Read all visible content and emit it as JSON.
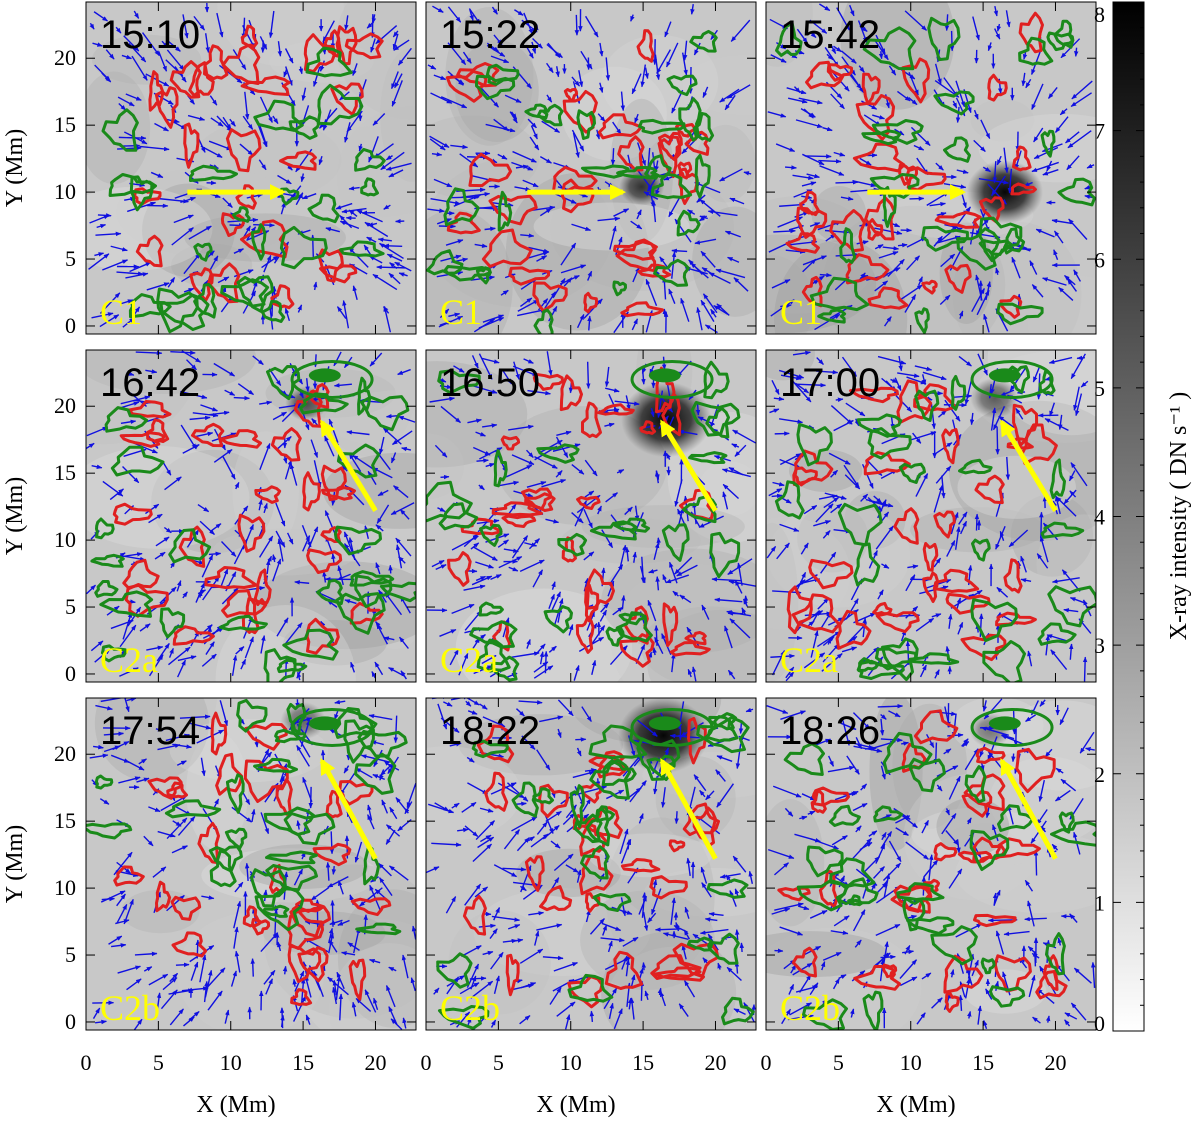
{
  "figure": {
    "panels": [
      {
        "time": "15:10",
        "event": "C1",
        "bright_spot": [
          14.6,
          9.8,
          0.0,
          0.0
        ],
        "arrow": {
          "from": [
            7.0,
            10.0
          ],
          "to": [
            13.6,
            10.0
          ]
        }
      },
      {
        "time": "15:22",
        "event": "C1",
        "bright_spot": [
          14.9,
          10.4,
          1.3,
          4.5
        ],
        "arrow": {
          "from": [
            7.0,
            10.0
          ],
          "to": [
            13.6,
            10.0
          ]
        }
      },
      {
        "time": "15:42",
        "event": "C1",
        "bright_spot": [
          16.5,
          10.0,
          2.2,
          8.0
        ],
        "arrow": {
          "from": [
            7.0,
            10.0
          ],
          "to": [
            13.6,
            10.0
          ]
        }
      },
      {
        "time": "16:42",
        "event": "C2a",
        "bright_spot": [
          15.2,
          20.2,
          1.2,
          3.5
        ],
        "arrow": {
          "from": [
            20.0,
            12.2
          ],
          "to": [
            16.3,
            18.8
          ]
        }
      },
      {
        "time": "16:50",
        "event": "C2a",
        "bright_spot": [
          16.6,
          19.0,
          2.6,
          8.0
        ],
        "arrow": {
          "from": [
            20.0,
            12.2
          ],
          "to": [
            16.3,
            18.8
          ]
        }
      },
      {
        "time": "17:00",
        "event": "C2a",
        "bright_spot": [
          15.8,
          20.6,
          1.4,
          3.0
        ],
        "arrow": {
          "from": [
            20.0,
            12.2
          ],
          "to": [
            16.3,
            18.8
          ]
        }
      },
      {
        "time": "17:54",
        "event": "C2b",
        "bright_spot": [
          15.0,
          22.5,
          1.3,
          2.5
        ],
        "arrow": {
          "from": [
            20.0,
            12.2
          ],
          "to": [
            16.3,
            19.5
          ]
        }
      },
      {
        "time": "18:22",
        "event": "C2b",
        "bright_spot": [
          16.4,
          21.4,
          2.6,
          8.0
        ],
        "arrow": {
          "from": [
            20.0,
            12.2
          ],
          "to": [
            16.3,
            19.5
          ]
        }
      },
      {
        "time": "18:26",
        "event": "C2b",
        "bright_spot": [
          15.5,
          21.8,
          1.2,
          2.0
        ],
        "arrow": {
          "from": [
            20.0,
            12.2
          ],
          "to": [
            16.3,
            19.5
          ]
        }
      }
    ],
    "x_axis": {
      "label": "X (Mm)",
      "range": [
        0,
        22.8
      ],
      "ticks": [
        "0",
        "5",
        "10",
        "15",
        "20"
      ]
    },
    "y_axis": {
      "label": "Y (Mm)",
      "range": [
        -0.6,
        24.2
      ],
      "ticks": [
        "0",
        "5",
        "10",
        "15",
        "20"
      ]
    },
    "colorbar": {
      "label": "X-ray intensity ( DN s⁻¹ )",
      "range": [
        0,
        8
      ],
      "ticks": [
        "0",
        "1",
        "2",
        "3",
        "4",
        "5",
        "6",
        "7",
        "8"
      ]
    },
    "colors": {
      "positive_contour": "#e02020",
      "negative_contour": "#1a8a1a",
      "flow_vectors": "#1010e0",
      "event_arrow": "#ffff00",
      "event_label": "#ffff00"
    }
  }
}
